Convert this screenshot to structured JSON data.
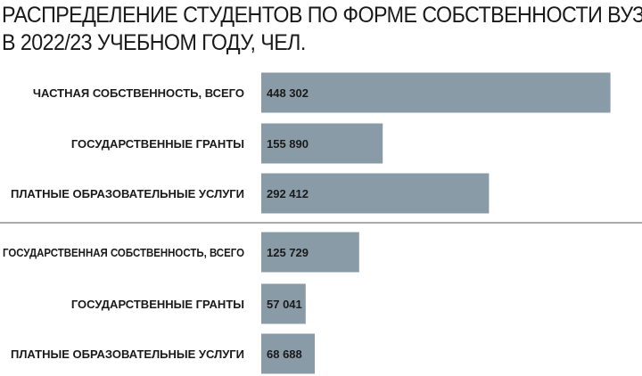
{
  "chart_data": {
    "type": "bar",
    "orientation": "horizontal",
    "title_lines": [
      "РАСПРЕДЕЛЕНИЕ СТУДЕНТОВ ПО ФОРМЕ СОБСТВЕННОСТИ ВУЗА",
      "В 2022/23 УЧЕБНОМ ГОДУ, ЧЕЛ."
    ],
    "categories": [
      "ЧАСТНАЯ СОБСТВЕННОСТЬ, ВСЕГО",
      "ГОСУДАРСТВЕННЫЕ ГРАНТЫ",
      "ПЛАТНЫЕ ОБРАЗОВАТЕЛЬНЫЕ УСЛУГИ",
      "ГОСУДАРСТВЕННАЯ СОБСТВЕННОСТЬ, ВСЕГО",
      "ГОСУДАРСТВЕННЫЕ ГРАНТЫ",
      "ПЛАТНЫЕ ОБРАЗОВАТЕЛЬНЫЕ УСЛУГИ"
    ],
    "values": [
      448302,
      155890,
      292412,
      125729,
      57041,
      68688
    ],
    "value_labels": [
      "448 302",
      "155 890",
      "292 412",
      "125 729",
      "57 041",
      "68 688"
    ],
    "groups": [
      {
        "indices": [
          0,
          1,
          2
        ]
      },
      {
        "indices": [
          3,
          4,
          5
        ]
      }
    ],
    "xlim": [
      0,
      490000
    ],
    "bar_color": "#8a9ba8",
    "divider_color": "#555555",
    "grid": false,
    "legend": "none"
  }
}
